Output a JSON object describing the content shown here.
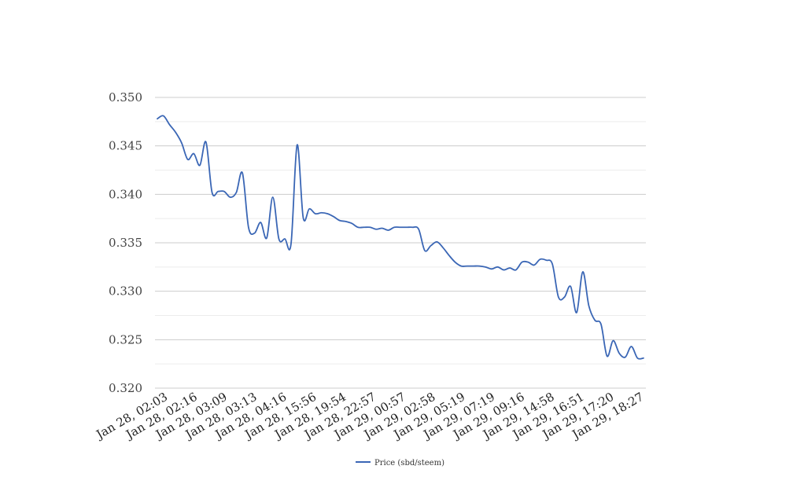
{
  "chart_data": {
    "type": "line",
    "title": "",
    "xlabel": "",
    "ylabel": "",
    "ylim": [
      0.32,
      0.35
    ],
    "yticks": [
      "0.320",
      "0.325",
      "0.330",
      "0.335",
      "0.340",
      "0.345",
      "0.350"
    ],
    "grid": true,
    "legend_position": "bottom-center",
    "x_tick_labels": [
      "Jan 28, 02:03",
      "Jan 28, 02:16",
      "Jan 28, 03:09",
      "Jan 28, 03:13",
      "Jan 28, 04:16",
      "Jan 28, 15:56",
      "Jan 28, 19:54",
      "Jan 28, 22:57",
      "Jan 29, 00:57",
      "Jan 29, 02:58",
      "Jan 29, 05:19",
      "Jan 29, 07:19",
      "Jan 29, 09:16",
      "Jan 29, 14:58",
      "Jan 29, 16:51",
      "Jan 29, 17:20",
      "Jan 29, 18:27"
    ],
    "series": [
      {
        "name": "Price (sbd/steem)",
        "color": "#3a66b5",
        "values": [
          0.3478,
          0.3481,
          0.3472,
          0.3464,
          0.3453,
          0.3436,
          0.3442,
          0.343,
          0.3454,
          0.3402,
          0.3403,
          0.3403,
          0.3397,
          0.3402,
          0.3422,
          0.3366,
          0.336,
          0.3371,
          0.3355,
          0.3397,
          0.3354,
          0.3354,
          0.3349,
          0.3451,
          0.3376,
          0.3385,
          0.338,
          0.3381,
          0.338,
          0.3377,
          0.3373,
          0.3372,
          0.337,
          0.3366,
          0.3366,
          0.3366,
          0.3364,
          0.3365,
          0.3363,
          0.3366,
          0.3366,
          0.3366,
          0.3366,
          0.3364,
          0.3342,
          0.3347,
          0.3351,
          0.3345,
          0.3337,
          0.333,
          0.3326,
          0.3326,
          0.3326,
          0.3326,
          0.3325,
          0.3323,
          0.3325,
          0.3322,
          0.3324,
          0.3322,
          0.333,
          0.333,
          0.3327,
          0.3333,
          0.3332,
          0.3328,
          0.3294,
          0.3294,
          0.3305,
          0.3278,
          0.332,
          0.3285,
          0.327,
          0.3266,
          0.3233,
          0.3249,
          0.3236,
          0.3232,
          0.3243,
          0.3231,
          0.3231
        ]
      }
    ]
  }
}
